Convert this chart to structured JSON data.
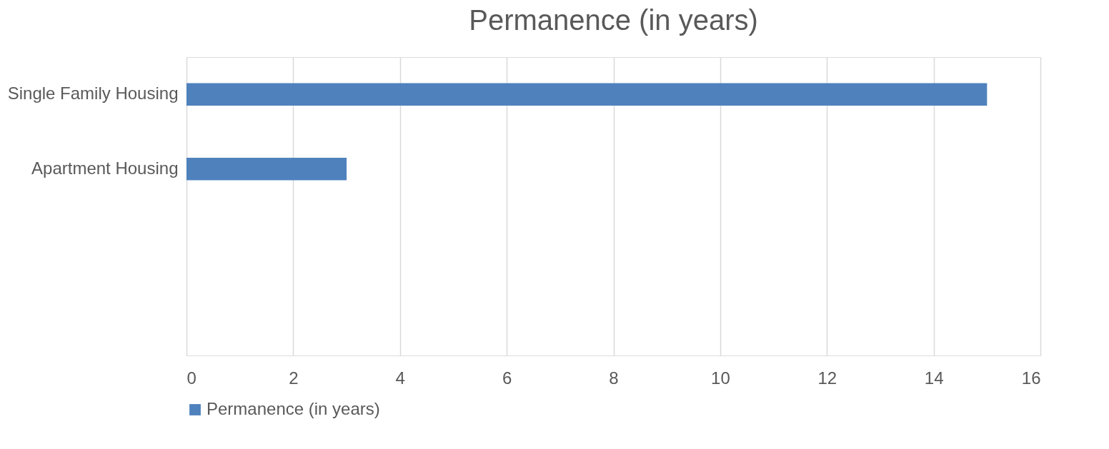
{
  "chart_data": {
    "type": "bar",
    "orientation": "horizontal",
    "title": "Permanence (in years)",
    "categories": [
      "Single Family Housing",
      "Apartment Housing",
      null,
      null
    ],
    "series": [
      {
        "name": "Permanence (in years)",
        "color": "#4f81bd",
        "values": [
          15,
          3,
          null,
          null
        ]
      }
    ],
    "xlim": [
      0,
      16
    ],
    "xticks": [
      0,
      2,
      4,
      6,
      8,
      10,
      12,
      14,
      16
    ],
    "grid": "x",
    "legend": "bottom"
  }
}
